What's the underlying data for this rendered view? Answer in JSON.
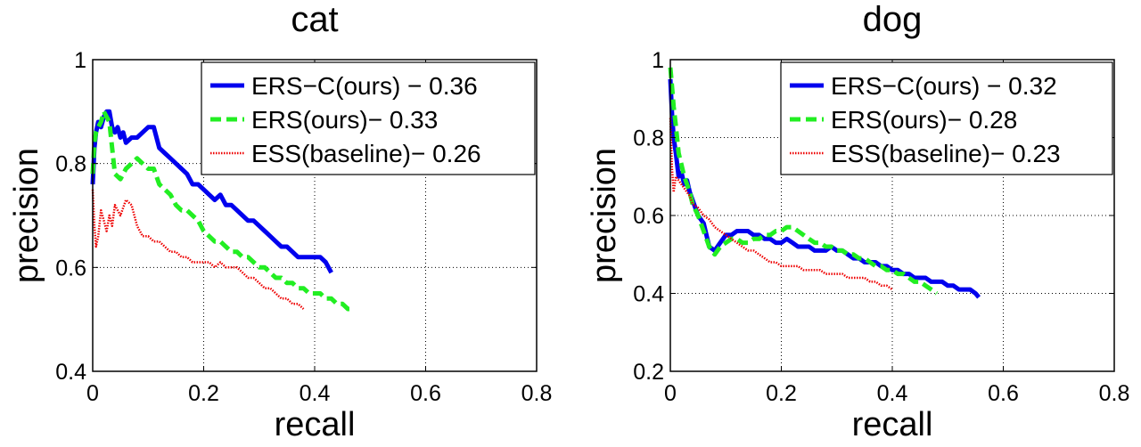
{
  "charts": [
    {
      "type": "line",
      "title": "cat",
      "xlabel": "recall",
      "ylabel": "precision",
      "xlim": [
        0,
        0.8
      ],
      "ylim": [
        0.4,
        1
      ],
      "xticks": [
        "0",
        "0.2",
        "0.4",
        "0.6",
        "0.8"
      ],
      "yticks": [
        "0.4",
        "0.6",
        "0.8",
        "1"
      ],
      "grid": true,
      "legend_position": "top-right",
      "series": [
        {
          "name": "ERS−C(ours) − 0.36",
          "color": "#0000ee",
          "style": "solid",
          "x": [
            0.0,
            0.003,
            0.006,
            0.01,
            0.015,
            0.02,
            0.025,
            0.03,
            0.035,
            0.04,
            0.045,
            0.05,
            0.055,
            0.06,
            0.07,
            0.08,
            0.09,
            0.1,
            0.11,
            0.12,
            0.13,
            0.14,
            0.15,
            0.16,
            0.17,
            0.18,
            0.19,
            0.2,
            0.21,
            0.22,
            0.23,
            0.24,
            0.25,
            0.26,
            0.27,
            0.28,
            0.29,
            0.3,
            0.31,
            0.32,
            0.33,
            0.34,
            0.35,
            0.36,
            0.37,
            0.38,
            0.39,
            0.4,
            0.41,
            0.42,
            0.43
          ],
          "y": [
            0.76,
            0.83,
            0.86,
            0.88,
            0.87,
            0.89,
            0.9,
            0.9,
            0.87,
            0.86,
            0.87,
            0.85,
            0.86,
            0.84,
            0.85,
            0.85,
            0.86,
            0.87,
            0.87,
            0.83,
            0.82,
            0.81,
            0.8,
            0.79,
            0.78,
            0.76,
            0.76,
            0.75,
            0.74,
            0.73,
            0.74,
            0.72,
            0.72,
            0.71,
            0.7,
            0.69,
            0.69,
            0.68,
            0.67,
            0.66,
            0.65,
            0.64,
            0.64,
            0.63,
            0.62,
            0.62,
            0.62,
            0.62,
            0.62,
            0.61,
            0.59
          ]
        },
        {
          "name": "ERS(ours)− 0.33",
          "color": "#22ee22",
          "style": "dashed",
          "x": [
            0.0,
            0.003,
            0.006,
            0.01,
            0.015,
            0.02,
            0.025,
            0.03,
            0.035,
            0.04,
            0.05,
            0.06,
            0.07,
            0.08,
            0.09,
            0.1,
            0.11,
            0.12,
            0.13,
            0.14,
            0.15,
            0.16,
            0.17,
            0.18,
            0.19,
            0.2,
            0.21,
            0.22,
            0.23,
            0.24,
            0.25,
            0.26,
            0.27,
            0.28,
            0.29,
            0.3,
            0.31,
            0.32,
            0.33,
            0.34,
            0.35,
            0.36,
            0.37,
            0.38,
            0.39,
            0.4,
            0.41,
            0.42,
            0.43,
            0.44,
            0.45,
            0.46,
            0.47
          ],
          "y": [
            0.78,
            0.84,
            0.86,
            0.87,
            0.88,
            0.9,
            0.89,
            0.88,
            0.83,
            0.78,
            0.77,
            0.79,
            0.8,
            0.81,
            0.8,
            0.79,
            0.79,
            0.76,
            0.75,
            0.74,
            0.72,
            0.71,
            0.71,
            0.7,
            0.69,
            0.67,
            0.66,
            0.65,
            0.65,
            0.64,
            0.63,
            0.63,
            0.62,
            0.62,
            0.61,
            0.6,
            0.6,
            0.59,
            0.58,
            0.58,
            0.57,
            0.57,
            0.56,
            0.56,
            0.55,
            0.55,
            0.55,
            0.54,
            0.54,
            0.53,
            0.53,
            0.52,
            0.52
          ]
        },
        {
          "name": "ESS(baseline)− 0.26",
          "color": "#ee0000",
          "style": "dotted",
          "x": [
            0.0,
            0.003,
            0.006,
            0.01,
            0.015,
            0.02,
            0.025,
            0.03,
            0.035,
            0.04,
            0.05,
            0.06,
            0.07,
            0.08,
            0.09,
            0.1,
            0.11,
            0.12,
            0.13,
            0.14,
            0.15,
            0.16,
            0.17,
            0.18,
            0.19,
            0.2,
            0.21,
            0.22,
            0.23,
            0.24,
            0.25,
            0.26,
            0.27,
            0.28,
            0.29,
            0.3,
            0.31,
            0.32,
            0.33,
            0.34,
            0.35,
            0.36,
            0.37,
            0.38
          ],
          "y": [
            0.75,
            0.68,
            0.64,
            0.66,
            0.71,
            0.69,
            0.67,
            0.7,
            0.68,
            0.72,
            0.7,
            0.73,
            0.72,
            0.68,
            0.66,
            0.66,
            0.65,
            0.65,
            0.64,
            0.63,
            0.63,
            0.62,
            0.62,
            0.61,
            0.61,
            0.61,
            0.61,
            0.6,
            0.61,
            0.6,
            0.6,
            0.6,
            0.59,
            0.58,
            0.58,
            0.57,
            0.56,
            0.56,
            0.55,
            0.54,
            0.54,
            0.53,
            0.53,
            0.52
          ]
        }
      ]
    },
    {
      "type": "line",
      "title": "dog",
      "xlabel": "recall",
      "ylabel": "precision",
      "xlim": [
        0,
        0.8
      ],
      "ylim": [
        0.2,
        1
      ],
      "xticks": [
        "0",
        "0.2",
        "0.4",
        "0.6",
        "0.8"
      ],
      "yticks": [
        "0.2",
        "0.4",
        "0.6",
        "0.8",
        "1"
      ],
      "grid": true,
      "legend_position": "top-right",
      "series": [
        {
          "name": "ERS−C(ours) − 0.32",
          "color": "#0000ee",
          "style": "solid",
          "x": [
            0.0,
            0.003,
            0.006,
            0.01,
            0.015,
            0.02,
            0.025,
            0.03,
            0.035,
            0.04,
            0.05,
            0.06,
            0.07,
            0.08,
            0.09,
            0.1,
            0.11,
            0.12,
            0.13,
            0.14,
            0.15,
            0.16,
            0.17,
            0.18,
            0.19,
            0.2,
            0.21,
            0.22,
            0.23,
            0.24,
            0.25,
            0.26,
            0.27,
            0.28,
            0.29,
            0.3,
            0.31,
            0.32,
            0.33,
            0.34,
            0.35,
            0.36,
            0.37,
            0.38,
            0.39,
            0.4,
            0.41,
            0.42,
            0.43,
            0.44,
            0.45,
            0.46,
            0.47,
            0.48,
            0.49,
            0.5,
            0.51,
            0.52,
            0.53,
            0.54,
            0.55,
            0.556
          ],
          "y": [
            0.95,
            0.86,
            0.8,
            0.76,
            0.7,
            0.71,
            0.68,
            0.69,
            0.66,
            0.64,
            0.6,
            0.58,
            0.52,
            0.51,
            0.53,
            0.55,
            0.55,
            0.56,
            0.56,
            0.56,
            0.55,
            0.55,
            0.54,
            0.54,
            0.53,
            0.53,
            0.54,
            0.53,
            0.52,
            0.52,
            0.52,
            0.51,
            0.51,
            0.51,
            0.52,
            0.51,
            0.51,
            0.5,
            0.49,
            0.49,
            0.48,
            0.48,
            0.48,
            0.47,
            0.47,
            0.46,
            0.46,
            0.45,
            0.45,
            0.44,
            0.44,
            0.44,
            0.43,
            0.43,
            0.43,
            0.42,
            0.42,
            0.41,
            0.41,
            0.41,
            0.4,
            0.39
          ]
        },
        {
          "name": "ERS(ours)− 0.28",
          "color": "#22ee22",
          "style": "dashed",
          "x": [
            0.0,
            0.003,
            0.006,
            0.01,
            0.015,
            0.02,
            0.025,
            0.03,
            0.035,
            0.04,
            0.05,
            0.06,
            0.07,
            0.08,
            0.09,
            0.1,
            0.11,
            0.12,
            0.13,
            0.14,
            0.15,
            0.16,
            0.17,
            0.18,
            0.19,
            0.2,
            0.21,
            0.22,
            0.23,
            0.24,
            0.25,
            0.26,
            0.27,
            0.28,
            0.29,
            0.3,
            0.31,
            0.32,
            0.33,
            0.34,
            0.35,
            0.36,
            0.37,
            0.38,
            0.39,
            0.4,
            0.41,
            0.42,
            0.43,
            0.44,
            0.45,
            0.46,
            0.47,
            0.48
          ],
          "y": [
            0.98,
            0.93,
            0.88,
            0.83,
            0.76,
            0.73,
            0.7,
            0.68,
            0.66,
            0.63,
            0.6,
            0.56,
            0.52,
            0.5,
            0.52,
            0.53,
            0.54,
            0.54,
            0.53,
            0.53,
            0.54,
            0.54,
            0.55,
            0.55,
            0.56,
            0.56,
            0.57,
            0.57,
            0.56,
            0.55,
            0.54,
            0.53,
            0.53,
            0.52,
            0.52,
            0.51,
            0.51,
            0.5,
            0.5,
            0.49,
            0.49,
            0.48,
            0.47,
            0.47,
            0.46,
            0.46,
            0.45,
            0.45,
            0.44,
            0.43,
            0.43,
            0.42,
            0.41,
            0.4
          ]
        },
        {
          "name": "ESS(baseline)− 0.23",
          "color": "#ee0000",
          "style": "dotted",
          "x": [
            0.0,
            0.003,
            0.006,
            0.01,
            0.015,
            0.02,
            0.025,
            0.03,
            0.035,
            0.04,
            0.05,
            0.06,
            0.07,
            0.08,
            0.09,
            0.1,
            0.11,
            0.12,
            0.13,
            0.14,
            0.15,
            0.16,
            0.17,
            0.18,
            0.19,
            0.2,
            0.21,
            0.22,
            0.23,
            0.24,
            0.25,
            0.26,
            0.27,
            0.28,
            0.29,
            0.3,
            0.31,
            0.32,
            0.33,
            0.34,
            0.35,
            0.36,
            0.37,
            0.38,
            0.39,
            0.4
          ],
          "y": [
            0.85,
            0.72,
            0.66,
            0.7,
            0.69,
            0.68,
            0.67,
            0.66,
            0.65,
            0.63,
            0.62,
            0.6,
            0.59,
            0.57,
            0.56,
            0.55,
            0.54,
            0.53,
            0.52,
            0.51,
            0.51,
            0.5,
            0.49,
            0.48,
            0.48,
            0.47,
            0.47,
            0.47,
            0.47,
            0.46,
            0.46,
            0.46,
            0.46,
            0.45,
            0.45,
            0.45,
            0.45,
            0.44,
            0.44,
            0.44,
            0.44,
            0.43,
            0.43,
            0.42,
            0.42,
            0.41
          ]
        }
      ]
    }
  ]
}
